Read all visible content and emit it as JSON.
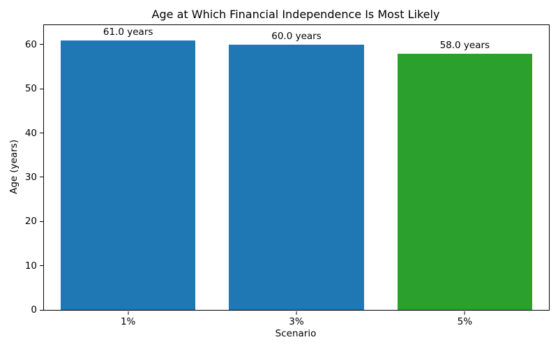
{
  "chart_data": {
    "type": "bar",
    "title": "Age at Which Financial Independence Is Most Likely",
    "xlabel": "Scenario",
    "ylabel": "Age (years)",
    "categories": [
      "1%",
      "3%",
      "5%"
    ],
    "values": [
      61.0,
      60.0,
      58.0
    ],
    "bar_labels": [
      "61.0 years",
      "60.0 years",
      "58.0 years"
    ],
    "bar_colors": [
      "#1f77b4",
      "#1f77b4",
      "#2ca02c"
    ],
    "ylim": [
      0,
      64.4
    ],
    "yticks": [
      0,
      10,
      20,
      30,
      40,
      50,
      60
    ],
    "bar_width_fraction": 0.8,
    "grid": false,
    "legend": "none",
    "background_color": "#ffffff",
    "spine_color": "#000000"
  }
}
